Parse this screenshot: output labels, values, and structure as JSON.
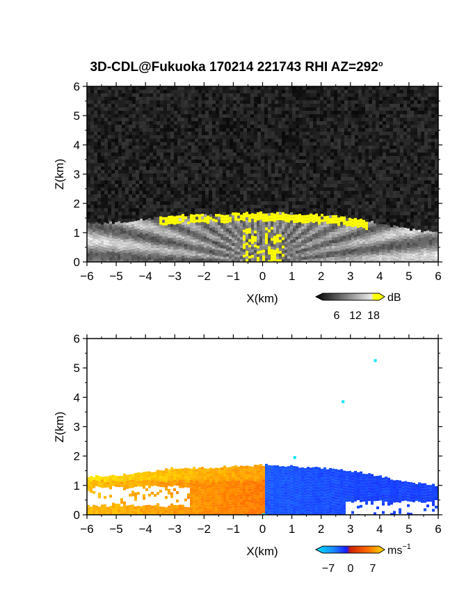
{
  "title_text": "3D-CDL@Fukuoka 170214 221743 RHI AZ=292",
  "title_sup": "o",
  "colors": {
    "background": "#ffffff",
    "snr_panel_bg": "#111111",
    "snr_high": "#ffff00",
    "velocity_neg": "#1a4dff",
    "velocity_pos": "#ff3a00",
    "velocity_high_pos": "#ffc800",
    "velocity_low_cyan": "#00e6ff"
  },
  "chart_data": [
    {
      "type": "heatmap",
      "panel": "top",
      "title": "3D-CDL@Fukuoka 170214 221743 RHI AZ=292°",
      "xlabel": "X(km)",
      "ylabel": "Z(km)",
      "xlim": [
        -6,
        6
      ],
      "ylim": [
        0,
        6
      ],
      "xticks": [
        "−6",
        "−5",
        "−4",
        "−3",
        "−2",
        "−1",
        "0",
        "1",
        "2",
        "3",
        "4",
        "5",
        "6"
      ],
      "yticks": [
        "0",
        "1",
        "2",
        "3",
        "4",
        "5",
        "6"
      ],
      "colorbar": {
        "unit": "dB",
        "ticks": [
          "6",
          "12",
          "18"
        ],
        "range": [
          0,
          20
        ],
        "colormap": "grayscale-to-yellow"
      },
      "features": {
        "boundary_layer_top_km": [
          [
            -6,
            1.3
          ],
          [
            -5,
            1.35
          ],
          [
            -4,
            1.45
          ],
          [
            -3,
            1.6
          ],
          [
            -2,
            1.6
          ],
          [
            -1,
            1.65
          ],
          [
            0,
            1.7
          ],
          [
            1,
            1.65
          ],
          [
            2,
            1.6
          ],
          [
            3,
            1.5
          ],
          [
            4,
            1.3
          ],
          [
            5,
            1.1
          ],
          [
            6,
            1.0
          ]
        ],
        "high_snr_layer_km": [
          1.3,
          1.7
        ],
        "noise_above_km": 1.8
      }
    },
    {
      "type": "heatmap",
      "panel": "bottom",
      "xlabel": "X(km)",
      "ylabel": "Z(km)",
      "xlim": [
        -6,
        6
      ],
      "ylim": [
        0,
        6
      ],
      "xticks": [
        "−6",
        "−5",
        "−4",
        "−3",
        "−2",
        "−1",
        "0",
        "1",
        "2",
        "3",
        "4",
        "5",
        "6"
      ],
      "yticks": [
        "0",
        "1",
        "2",
        "3",
        "4",
        "5",
        "6"
      ],
      "colorbar": {
        "unit": "ms",
        "unit_sup": "−1",
        "ticks": [
          "−7",
          "0",
          "7"
        ],
        "range": [
          -8,
          8
        ],
        "colormap": "cyan-blue-red-yellow"
      },
      "features": {
        "negative_velocity_region_x_km": [
          0,
          6
        ],
        "positive_velocity_region_x_km": [
          -6,
          0
        ],
        "echo_top_km": 1.75,
        "isolated_points": [
          {
            "x": 1.1,
            "z": 1.95,
            "v": -7
          },
          {
            "x": 2.75,
            "z": 3.85,
            "v": -7
          },
          {
            "x": 3.85,
            "z": 5.25,
            "v": -7
          }
        ]
      }
    }
  ]
}
